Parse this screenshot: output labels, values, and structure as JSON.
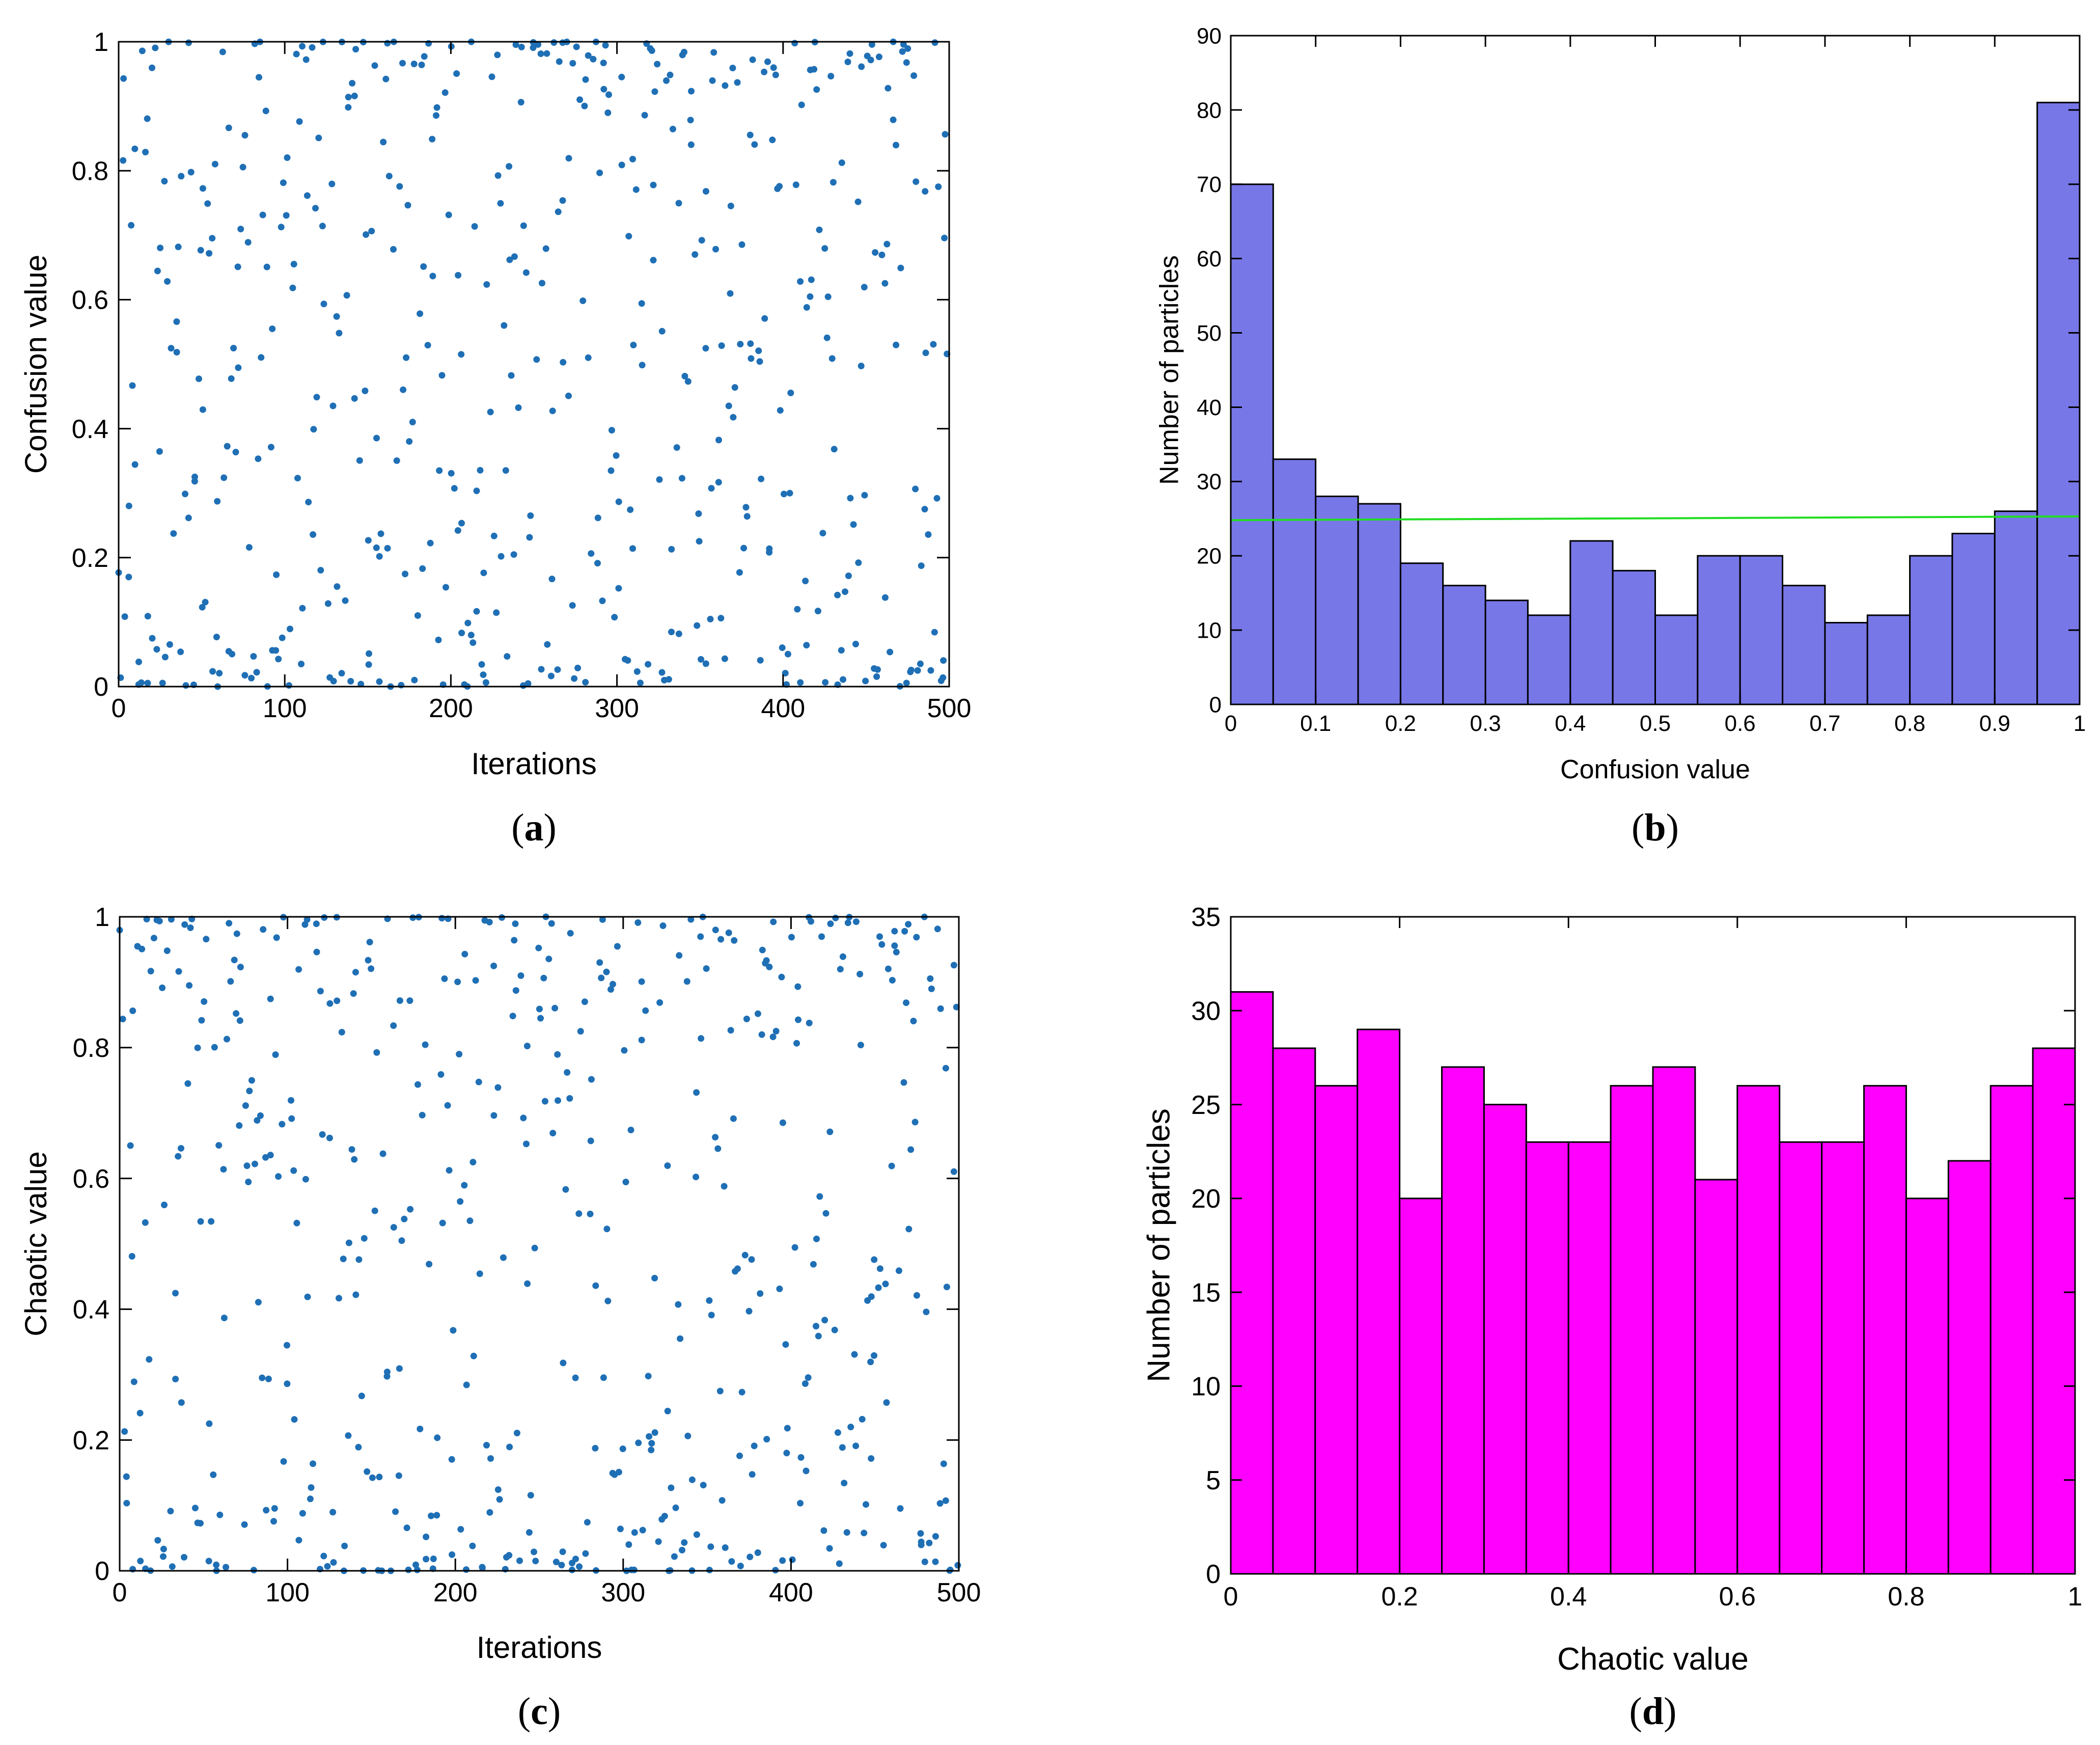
{
  "colors": {
    "scatter": "#1f6fb5",
    "hist_b": "#7777e8",
    "hist_d": "#ff00ff",
    "trend": "#22dd22"
  },
  "chart_data": [
    {
      "panel": "a",
      "caption_letter": "a",
      "type": "scatter",
      "xlabel": "Iterations",
      "ylabel": "Confusion value",
      "xlim": [
        0,
        500
      ],
      "ylim": [
        0,
        1
      ],
      "xticks": [
        "0",
        "100",
        "200",
        "300",
        "400",
        "500"
      ],
      "yticks": [
        "0",
        "0.2",
        "0.4",
        "0.6",
        "0.8",
        "1"
      ],
      "n_points": 500,
      "seed": 11
    },
    {
      "panel": "b",
      "caption_letter": "b",
      "type": "bar",
      "xlabel": "Confusion value",
      "ylabel": "Number of particles",
      "xlim": [
        0,
        1
      ],
      "ylim": [
        0,
        90
      ],
      "xticks": [
        "0",
        "0.1",
        "0.2",
        "0.3",
        "0.4",
        "0.5",
        "0.6",
        "0.7",
        "0.8",
        "0.9",
        "1"
      ],
      "yticks": [
        "0",
        "10",
        "20",
        "30",
        "40",
        "50",
        "60",
        "70",
        "80",
        "90"
      ],
      "bin_width": 0.05,
      "values": [
        70,
        33,
        28,
        27,
        19,
        16,
        14,
        12,
        22,
        18,
        12,
        20,
        20,
        16,
        11,
        12,
        20,
        23,
        26,
        81
      ],
      "trend_line": [
        24.8,
        25.3
      ]
    },
    {
      "panel": "c",
      "caption_letter": "c",
      "type": "scatter",
      "xlabel": "Iterations",
      "ylabel": "Chaotic value",
      "xlim": [
        0,
        500
      ],
      "ylim": [
        0,
        1
      ],
      "xticks": [
        "0",
        "100",
        "200",
        "300",
        "400",
        "500"
      ],
      "yticks": [
        "0",
        "0.2",
        "0.4",
        "0.6",
        "0.8",
        "1"
      ],
      "n_points": 500,
      "seed": 29
    },
    {
      "panel": "d",
      "caption_letter": "d",
      "type": "bar",
      "xlabel": "Chaotic value",
      "ylabel": "Number of particles",
      "xlim": [
        0,
        1
      ],
      "ylim": [
        0,
        35
      ],
      "xticks": [
        "0",
        "0.2",
        "0.4",
        "0.6",
        "0.8",
        "1"
      ],
      "yticks": [
        "0",
        "5",
        "10",
        "15",
        "20",
        "25",
        "30",
        "35"
      ],
      "bin_width": 0.05,
      "values": [
        31,
        28,
        26,
        29,
        20,
        27,
        25,
        23,
        23,
        26,
        27,
        21,
        26,
        23,
        23,
        26,
        20,
        22,
        26,
        28
      ]
    }
  ]
}
